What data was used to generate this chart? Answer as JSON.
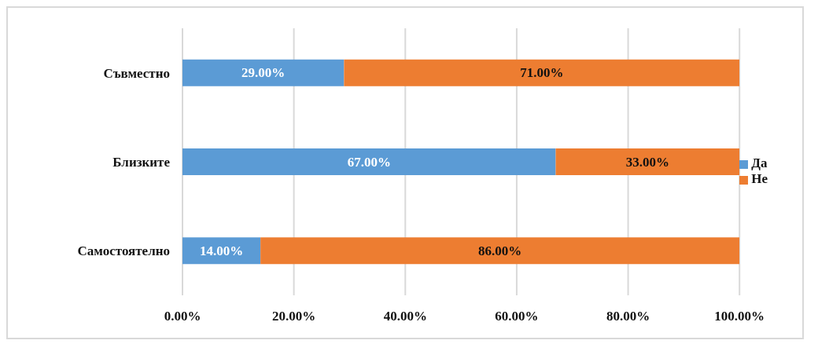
{
  "chart_data": {
    "type": "bar",
    "orientation": "horizontal",
    "stacked": true,
    "categories": [
      "Съвместно",
      "Близките",
      "Самостоятелно"
    ],
    "series": [
      {
        "name": "Да",
        "color": "#5b9bd5",
        "values": [
          29,
          67,
          14
        ],
        "value_labels": [
          "29.00%",
          "67.00%",
          "14.00%"
        ]
      },
      {
        "name": "Не",
        "color": "#ed7d31",
        "values": [
          71,
          33,
          86
        ],
        "value_labels": [
          "71.00%",
          "33.00%",
          "86.00%"
        ]
      }
    ],
    "xlim": [
      0,
      100
    ],
    "xticks": [
      {
        "value": 0,
        "label": "0.00%"
      },
      {
        "value": 20,
        "label": "20.00%"
      },
      {
        "value": 40,
        "label": "40.00%"
      },
      {
        "value": 60,
        "label": "60.00%"
      },
      {
        "value": 80,
        "label": "80.00%"
      },
      {
        "value": 100,
        "label": "100.00%"
      }
    ],
    "grid": "x",
    "legend": "right"
  }
}
